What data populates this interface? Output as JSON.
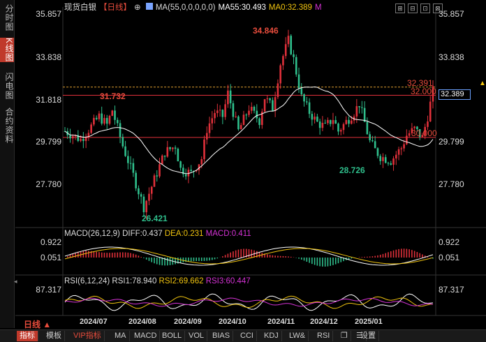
{
  "sidebar": {
    "tabs": [
      "分时图",
      "K线图",
      "闪电图",
      "合约资料"
    ],
    "active": 1
  },
  "header": {
    "name": "现货白银",
    "period": "【日线】",
    "ma_label": "MA(55,0,0,0,0,0)",
    "ma55": "MA55:30.493",
    "ma0": "MA0:32.389",
    "m_mark": "M"
  },
  "price_axis": [
    "35.857",
    "33.838",
    "31.818",
    "29.799",
    "27.780"
  ],
  "price_axis_right": [
    "35.857",
    "33.838",
    "31.818",
    "29.799",
    "27.780"
  ],
  "current_price": "32.389",
  "annotations": {
    "high": "34.846",
    "left_high": "31.732",
    "low": "26.421",
    "mid_low": "28.726",
    "last_high": "32.391",
    "line_32": "32.000",
    "line_30": "30.000"
  },
  "macd": {
    "label": "MACD(26,12,9)",
    "diff": "DIFF:0.437",
    "dea": "DEA:0.231",
    "macd": "MACD:0.411",
    "axis": [
      "0.922",
      "0.051"
    ]
  },
  "rsi": {
    "label": "RSI(6,12,24)",
    "rsi1": "RSI1:78.940",
    "rsi2": "RSI2:69.662",
    "rsi3": "RSI3:60.447",
    "axis": [
      "87.317"
    ]
  },
  "dates": [
    "2024/07",
    "2024/08",
    "2024/09",
    "2024/10",
    "2024/11",
    "2024/12",
    "2025/01"
  ],
  "period_selector": "日线",
  "toolbar": [
    "指标",
    "模板",
    "VIP指标",
    "MA",
    "MACD",
    "BOLL",
    "VOL",
    "BIAS",
    "CCI",
    "KDJ",
    "LW&",
    "RSI",
    "❐",
    "☰",
    "设置"
  ],
  "colors": {
    "up": "#e0303a",
    "down": "#2fbf8c",
    "ma": "#ffffff",
    "accent": "#c0392b"
  }
}
